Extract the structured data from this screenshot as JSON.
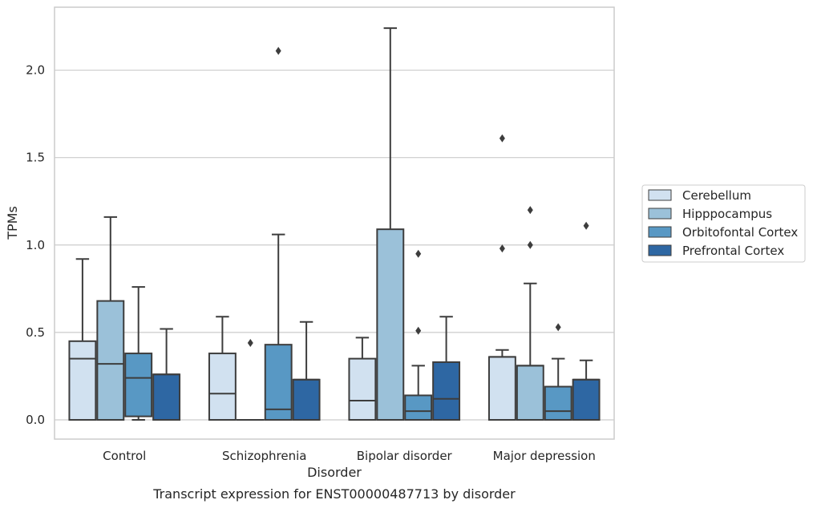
{
  "chart_data": {
    "type": "box",
    "title": "",
    "caption": "Transcript expression for ENST00000487713 by disorder",
    "xlabel": "Disorder",
    "ylabel": "TPMs",
    "ylim": [
      -0.11,
      2.36
    ],
    "yticks": [
      "0.0",
      "0.5",
      "1.0",
      "1.5",
      "2.0"
    ],
    "yticks_values": [
      0.0,
      0.5,
      1.0,
      1.5,
      2.0
    ],
    "grid": "horizontal",
    "legend_placement": "right",
    "categories": [
      "Control",
      "Schizophrenia",
      "Bipolar disorder",
      "Major depression"
    ],
    "series": [
      {
        "name": "Cerebellum",
        "color": "#d1e1f0",
        "boxes": [
          {
            "min": 0.0,
            "q1": 0.0,
            "median": 0.35,
            "q3": 0.45,
            "max": 0.92,
            "outliers": []
          },
          {
            "min": 0.0,
            "q1": 0.0,
            "median": 0.15,
            "q3": 0.38,
            "max": 0.59,
            "outliers": []
          },
          {
            "min": 0.0,
            "q1": 0.0,
            "median": 0.11,
            "q3": 0.35,
            "max": 0.47,
            "outliers": []
          },
          {
            "min": 0.0,
            "q1": 0.0,
            "median": 0.36,
            "q3": 0.36,
            "max": 0.4,
            "outliers": [
              0.98,
              1.61
            ]
          }
        ]
      },
      {
        "name": "Hipppocampus",
        "color": "#9bc1d9",
        "boxes": [
          {
            "min": 0.0,
            "q1": 0.0,
            "median": 0.32,
            "q3": 0.68,
            "max": 1.16,
            "outliers": []
          },
          {
            "min": 0.0,
            "q1": 0.0,
            "median": 0.0,
            "q3": 0.0,
            "max": 0.0,
            "outliers": [
              0.44
            ]
          },
          {
            "min": 0.0,
            "q1": 0.0,
            "median": 0.0,
            "q3": 1.09,
            "max": 2.24,
            "outliers": []
          },
          {
            "min": 0.0,
            "q1": 0.0,
            "median": 0.31,
            "q3": 0.31,
            "max": 0.78,
            "outliers": [
              1.0,
              1.2
            ]
          }
        ]
      },
      {
        "name": "Orbitofontal Cortex",
        "color": "#5898c4",
        "boxes": [
          {
            "min": 0.0,
            "q1": 0.02,
            "median": 0.24,
            "q3": 0.38,
            "max": 0.76,
            "outliers": []
          },
          {
            "min": 0.0,
            "q1": 0.0,
            "median": 0.06,
            "q3": 0.43,
            "max": 1.06,
            "outliers": [
              2.11
            ]
          },
          {
            "min": 0.0,
            "q1": 0.0,
            "median": 0.05,
            "q3": 0.14,
            "max": 0.31,
            "outliers": [
              0.51,
              0.95
            ]
          },
          {
            "min": 0.0,
            "q1": 0.0,
            "median": 0.05,
            "q3": 0.19,
            "max": 0.35,
            "outliers": [
              0.53
            ]
          }
        ]
      },
      {
        "name": "Prefrontal Cortex",
        "color": "#2e67a3",
        "boxes": [
          {
            "min": 0.0,
            "q1": 0.0,
            "median": 0.26,
            "q3": 0.26,
            "max": 0.52,
            "outliers": []
          },
          {
            "min": 0.0,
            "q1": 0.0,
            "median": 0.23,
            "q3": 0.23,
            "max": 0.56,
            "outliers": []
          },
          {
            "min": 0.0,
            "q1": 0.0,
            "median": 0.12,
            "q3": 0.33,
            "max": 0.59,
            "outliers": []
          },
          {
            "min": 0.0,
            "q1": 0.0,
            "median": 0.23,
            "q3": 0.23,
            "max": 0.34,
            "outliers": [
              1.11
            ]
          }
        ]
      }
    ]
  }
}
